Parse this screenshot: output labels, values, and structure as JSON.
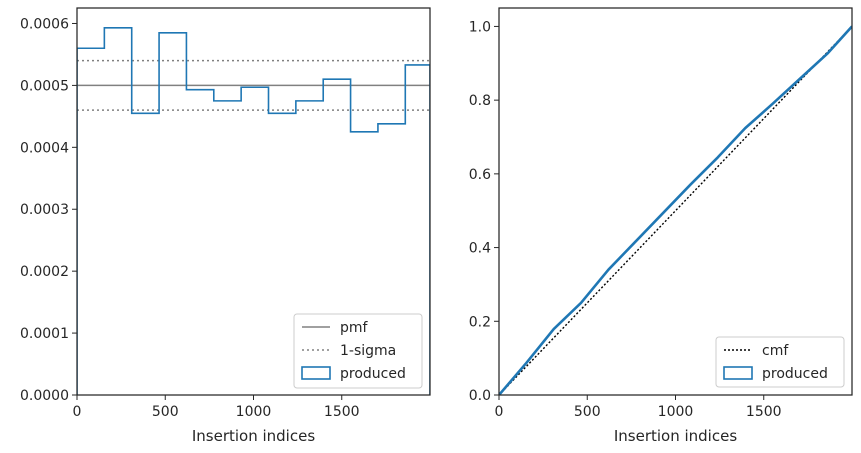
{
  "colors": {
    "series": "#1f77b4",
    "reference": "#808080",
    "cmf": "#000000",
    "axes": "#262626"
  },
  "chart_data": [
    {
      "type": "histogram",
      "xlabel": "Insertion indices",
      "ylabel": "",
      "xlim": [
        0,
        2000
      ],
      "ylim": [
        0,
        0.000625
      ],
      "xticks": [
        0,
        500,
        1000,
        1500
      ],
      "xtick_labels": [
        "0",
        "500",
        "1000",
        "1500"
      ],
      "yticks": [
        0,
        0.0001,
        0.0002,
        0.0003,
        0.0004,
        0.0005,
        0.0006
      ],
      "ytick_labels": [
        "0.0000",
        "0.0001",
        "0.0002",
        "0.0003",
        "0.0004",
        "0.0005",
        "0.0006"
      ],
      "reference_lines": [
        {
          "name": "pmf",
          "style": "solid",
          "y": 0.0005
        },
        {
          "name": "1-sigma",
          "style": "dotted",
          "y": 0.00054
        },
        {
          "name": "1-sigma",
          "style": "dotted",
          "y": 0.00046
        }
      ],
      "bin_edges": [
        0,
        155,
        310,
        465,
        620,
        775,
        930,
        1085,
        1240,
        1395,
        1550,
        1705,
        1860,
        2000
      ],
      "values": [
        0.00056,
        0.000593,
        0.000455,
        0.000585,
        0.000493,
        0.000475,
        0.000497,
        0.000455,
        0.000475,
        0.00051,
        0.000425,
        0.000438,
        0.000533
      ],
      "series_name": "produced",
      "legend": {
        "position": "lower-right",
        "entries": [
          {
            "label": "pmf",
            "style": "solid"
          },
          {
            "label": "1-sigma",
            "style": "dotted"
          },
          {
            "label": "produced",
            "style": "box"
          }
        ]
      }
    },
    {
      "type": "line",
      "xlabel": "Insertion indices",
      "ylabel": "",
      "xlim": [
        0,
        2000
      ],
      "ylim": [
        0,
        1.05
      ],
      "xticks": [
        0,
        500,
        1000,
        1500
      ],
      "xtick_labels": [
        "0",
        "500",
        "1000",
        "1500"
      ],
      "yticks": [
        0,
        0.2,
        0.4,
        0.6,
        0.8,
        1.0
      ],
      "ytick_labels": [
        "0.0",
        "0.2",
        "0.4",
        "0.6",
        "0.8",
        "1.0"
      ],
      "series": [
        {
          "name": "cmf",
          "style": "dotted",
          "x": [
            0,
            2000
          ],
          "y": [
            0,
            1.0
          ]
        },
        {
          "name": "produced",
          "style": "solid",
          "x": [
            0,
            155,
            310,
            465,
            620,
            775,
            930,
            1085,
            1240,
            1395,
            1550,
            1705,
            1860,
            2000
          ],
          "y": [
            0,
            0.087,
            0.179,
            0.25,
            0.34,
            0.417,
            0.494,
            0.571,
            0.645,
            0.724,
            0.79,
            0.858,
            0.926,
            1.0
          ]
        }
      ],
      "legend": {
        "position": "lower-right",
        "entries": [
          {
            "label": "cmf",
            "style": "dotted"
          },
          {
            "label": "produced",
            "style": "box"
          }
        ]
      }
    }
  ]
}
